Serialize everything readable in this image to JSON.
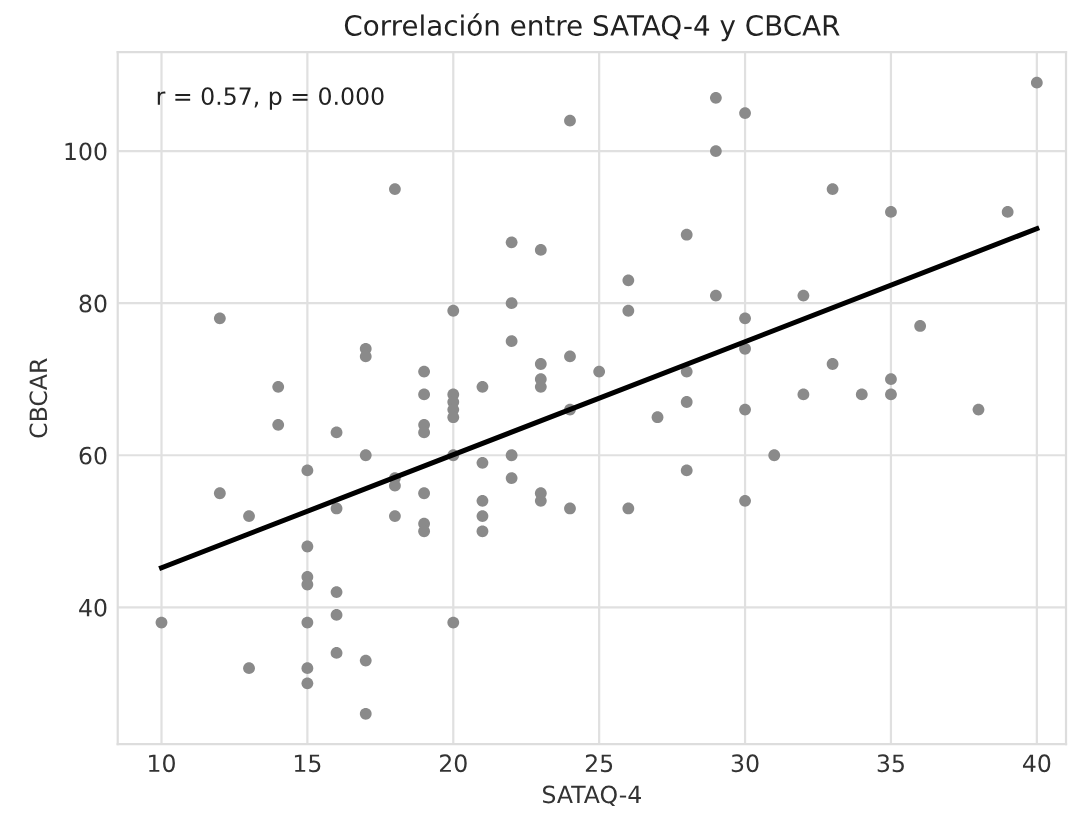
{
  "chart_data": {
    "type": "scatter",
    "title": "Correlación entre SATAQ-4 y CBCAR",
    "xlabel": "SATAQ-4",
    "ylabel": "CBCAR",
    "annotations": [
      "r = 0.57, p = 0.000"
    ],
    "series": [
      {
        "color": "#8a8a8a",
        "marker": "circle",
        "x": [
          10,
          12,
          12,
          13,
          13,
          14,
          14,
          15,
          15,
          15,
          15,
          15,
          15,
          15,
          16,
          16,
          16,
          16,
          16,
          17,
          17,
          17,
          17,
          17,
          18,
          18,
          18,
          18,
          19,
          19,
          19,
          19,
          19,
          19,
          19,
          20,
          20,
          20,
          20,
          20,
          20,
          20,
          21,
          21,
          21,
          21,
          21,
          22,
          22,
          22,
          22,
          22,
          23,
          23,
          23,
          23,
          23,
          23,
          24,
          24,
          24,
          24,
          25,
          26,
          26,
          26,
          27,
          28,
          28,
          28,
          28,
          29,
          29,
          29,
          30,
          30,
          30,
          30,
          30,
          31,
          32,
          32,
          33,
          33,
          34,
          35,
          35,
          35,
          36,
          38,
          39,
          40
        ],
        "values": [
          38,
          55,
          78,
          52,
          32,
          69,
          64,
          58,
          48,
          44,
          43,
          38,
          32,
          30,
          63,
          53,
          42,
          39,
          34,
          74,
          73,
          60,
          33,
          26,
          95,
          57,
          56,
          52,
          71,
          68,
          64,
          63,
          55,
          51,
          50,
          79,
          68,
          67,
          66,
          65,
          60,
          38,
          69,
          59,
          54,
          52,
          50,
          88,
          80,
          75,
          60,
          57,
          87,
          72,
          70,
          69,
          55,
          54,
          104,
          73,
          53,
          66,
          71,
          83,
          79,
          53,
          65,
          89,
          71,
          67,
          58,
          107,
          100,
          81,
          105,
          78,
          74,
          66,
          54,
          60,
          81,
          68,
          95,
          72,
          68,
          92,
          70,
          68,
          77,
          66,
          92,
          109
        ]
      },
      {
        "type": "line",
        "color": "#000000",
        "marker": "none",
        "line_style": "solid",
        "x": [
          10,
          40
        ],
        "values": [
          45.2,
          89.8
        ]
      }
    ],
    "xlim": [
      8.5,
      41
    ],
    "ylim": [
      22,
      113
    ],
    "xticks": [
      10,
      15,
      20,
      25,
      30,
      35,
      40
    ],
    "yticks": [
      40,
      60,
      80,
      100
    ],
    "grid": true,
    "legend": false
  }
}
